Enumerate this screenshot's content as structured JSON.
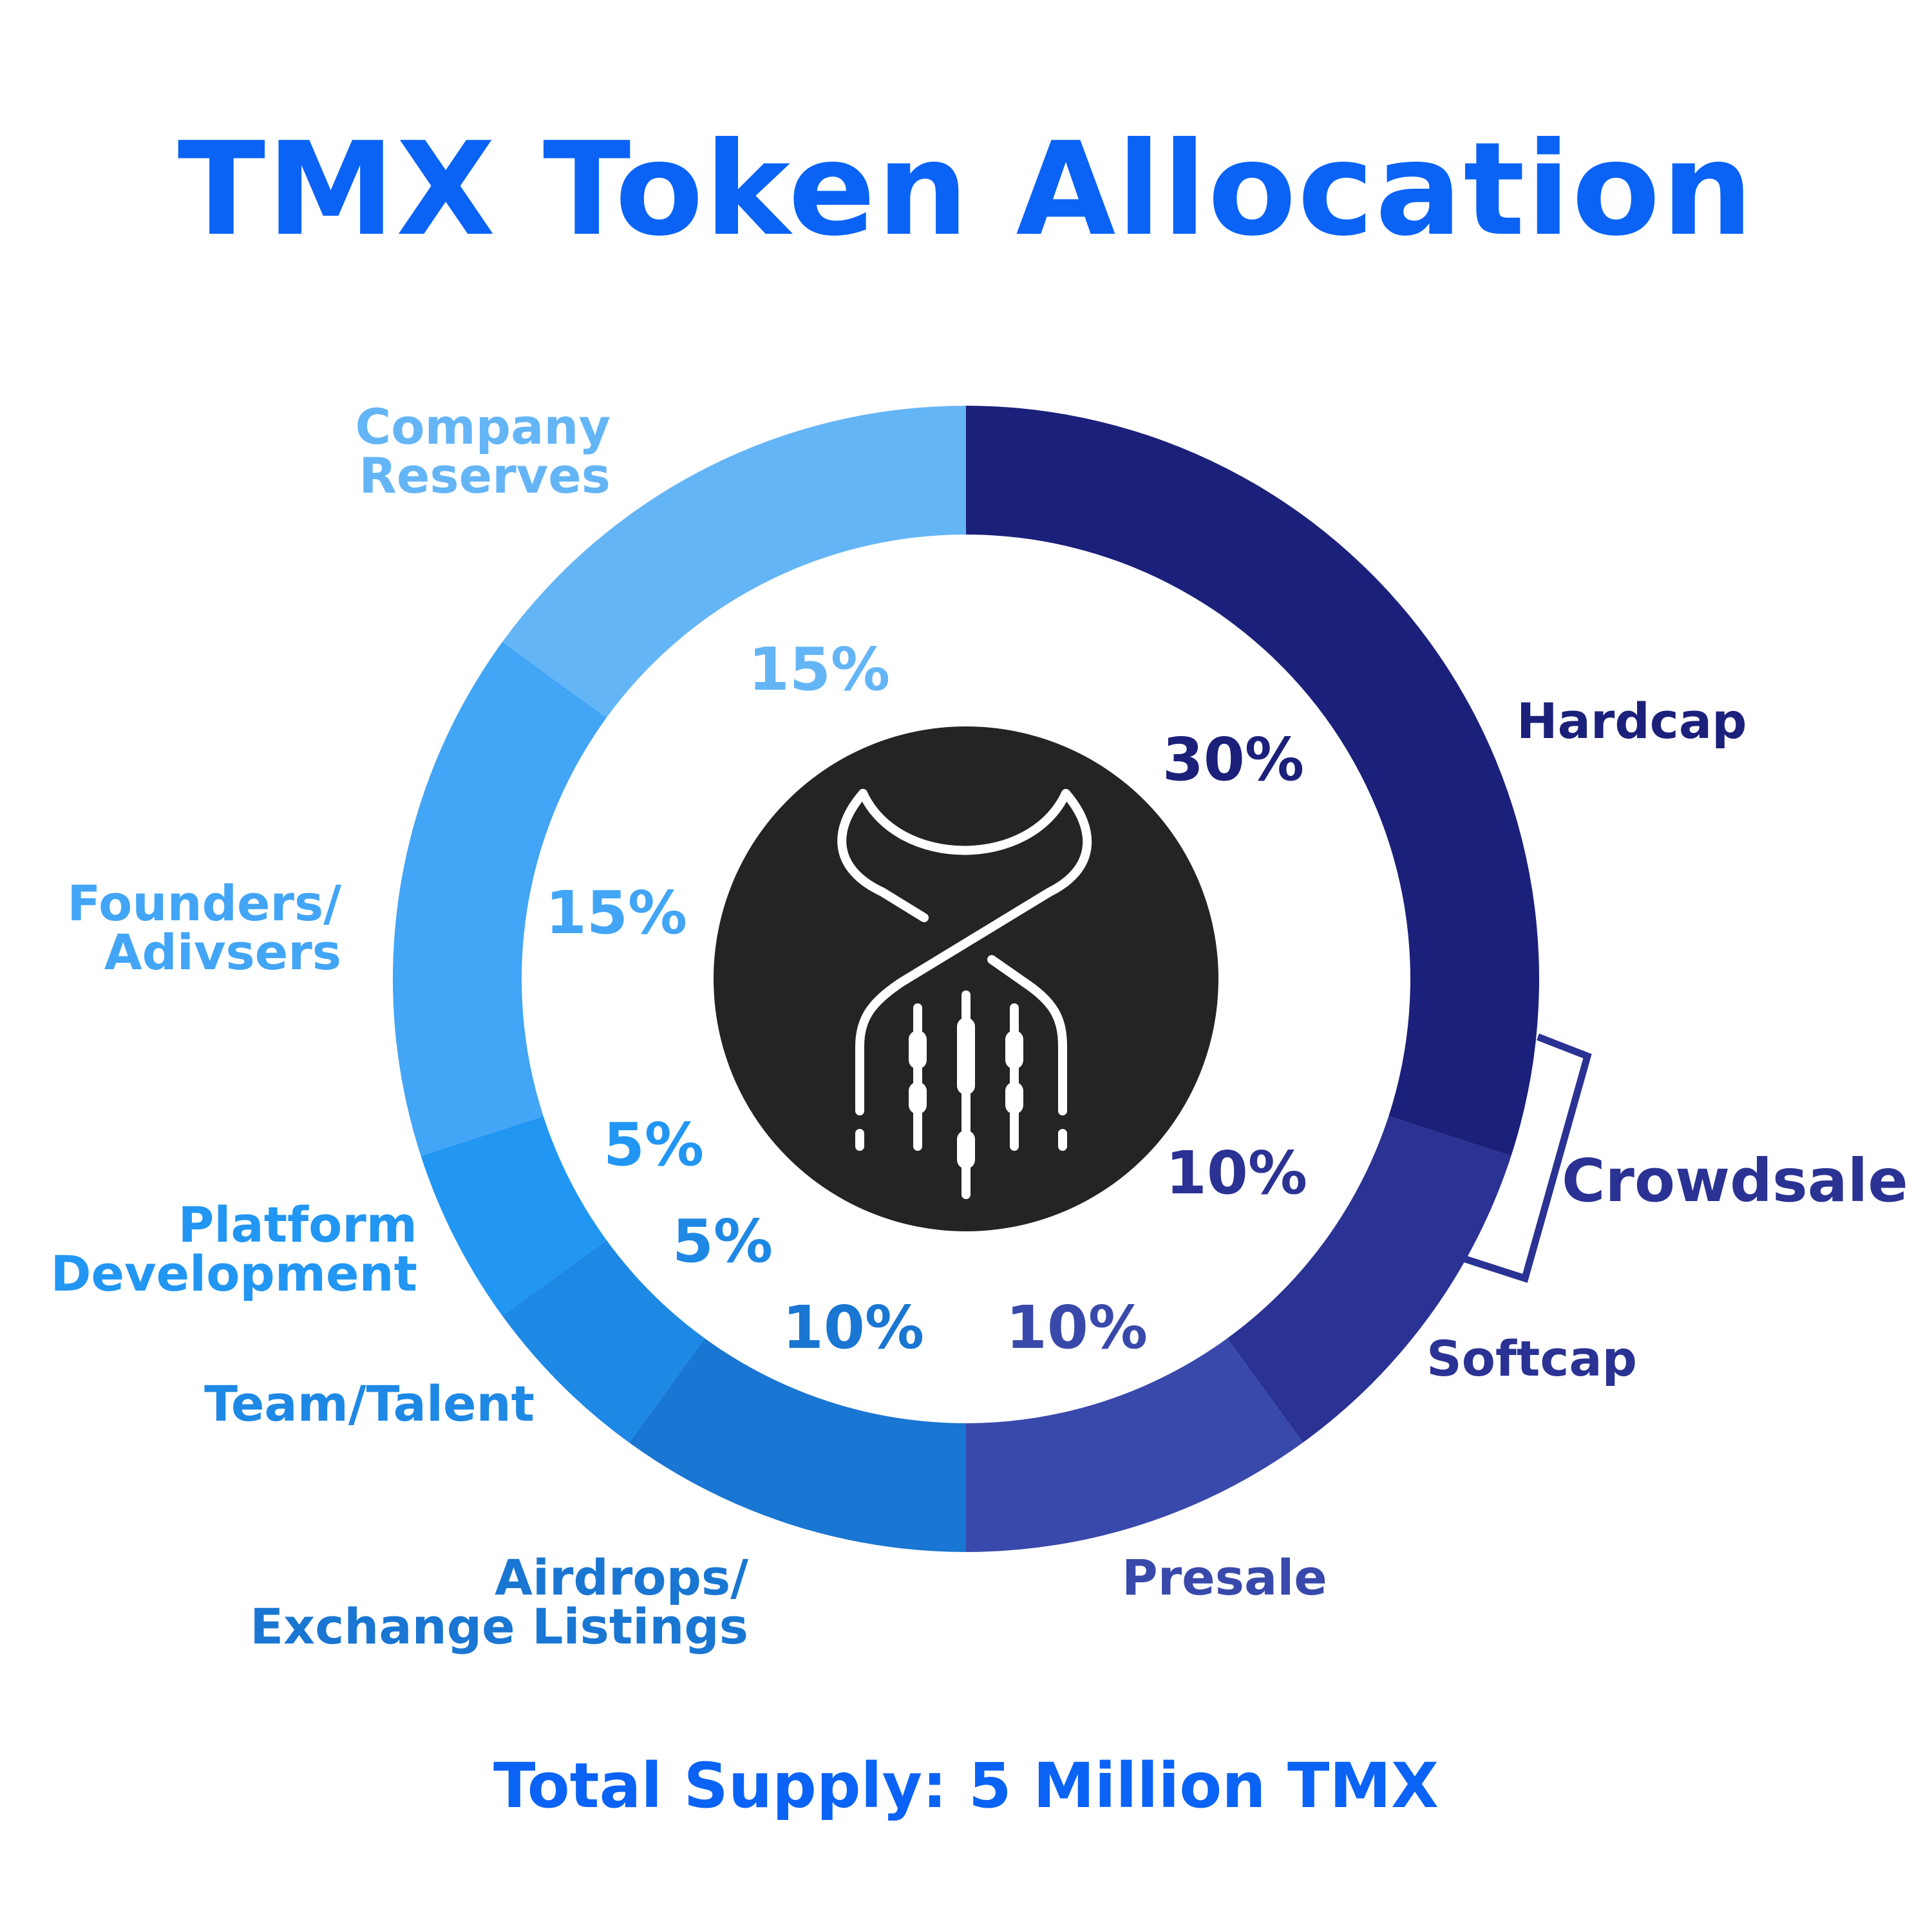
{
  "chart_data": {
    "type": "donut",
    "title": "TMX Token Allocation",
    "footer": "Total Supply: 5 Million TMX",
    "segments": [
      {
        "label_lines": [
          "Hardcap"
        ],
        "value": 30,
        "pct_label": "30%",
        "color": "#1b207a"
      },
      {
        "label_lines": [
          "Softcap"
        ],
        "value": 10,
        "pct_label": "10%",
        "color": "#2a3293"
      },
      {
        "label_lines": [
          "Presale"
        ],
        "value": 10,
        "pct_label": "10%",
        "color": "#3949ab"
      },
      {
        "label_lines": [
          "Airdrops/",
          "Exchange Listings"
        ],
        "value": 10,
        "pct_label": "10%",
        "color": "#1976d2"
      },
      {
        "label_lines": [
          "Team/Talent"
        ],
        "value": 5,
        "pct_label": "5%",
        "color": "#1e88e5"
      },
      {
        "label_lines": [
          "Platform",
          "Development"
        ],
        "value": 5,
        "pct_label": "5%",
        "color": "#2196f3"
      },
      {
        "label_lines": [
          "Founders/",
          "Adivsers"
        ],
        "value": 15,
        "pct_label": "15%",
        "color": "#42a5f5"
      },
      {
        "label_lines": [
          "Company",
          "Reserves"
        ],
        "value": 15,
        "pct_label": "15%",
        "color": "#64b5f6"
      }
    ],
    "group": {
      "label": "Crowdsale",
      "color": "#2a3293",
      "covers": [
        "Hardcap",
        "Softcap"
      ]
    },
    "center_icon": "tmx-logo-icon"
  }
}
